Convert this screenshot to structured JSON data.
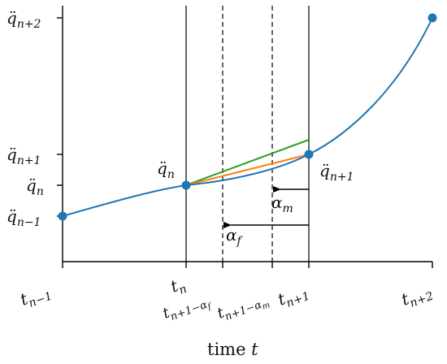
{
  "colors": {
    "axis": "#000000",
    "curve": "#1f77b4",
    "point": "#1f77b4",
    "tangent_green": "#2ca02c",
    "tangent_orange": "#ff7f0e"
  },
  "labels": {
    "xlabel_text": "time ",
    "xlabel_var": "t",
    "y_qnp2": {
      "base": "q̈",
      "sub": "n+2"
    },
    "y_qnp1": {
      "base": "q̈",
      "sub": "n+1"
    },
    "y_qn": {
      "base": "q̈",
      "sub": "n"
    },
    "y_qnm1": {
      "base": "q̈",
      "sub": "n−1"
    },
    "pt_qn": {
      "base": "q̈",
      "sub": "n"
    },
    "pt_qnp1": {
      "base": "q̈",
      "sub": "n+1"
    },
    "x_tnm1": {
      "base": "t",
      "sub": "n−1"
    },
    "x_tn": {
      "base": "t",
      "sub": "n"
    },
    "x_tnaf": {
      "base": "t",
      "sub": "n+1−α",
      "subsub": "f"
    },
    "x_tnam": {
      "base": "t",
      "sub": "n+1−α",
      "subsub": "m"
    },
    "x_tnp1": {
      "base": "t",
      "sub": "n+1"
    },
    "x_tnp2": {
      "base": "t",
      "sub": "n+2"
    },
    "alpha_m": {
      "base": "α",
      "sub": "m"
    },
    "alpha_f": {
      "base": "α",
      "sub": "f"
    }
  }
}
